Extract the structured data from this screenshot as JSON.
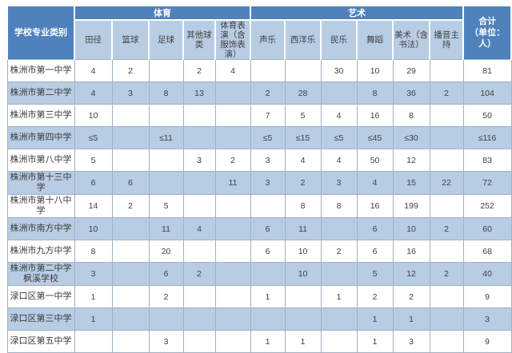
{
  "table": {
    "corner_header": "学校专业类别",
    "group_sport": "体育",
    "group_art": "艺术",
    "total_header_line1": "合计",
    "total_header_line2": "（单位：人）",
    "columns": [
      "田径",
      "篮球",
      "足球",
      "其他球类",
      "体育表演（含服饰表演）",
      "声乐",
      "西洋乐",
      "民乐",
      "舞蹈",
      "美术（含书法）",
      "播音主持"
    ],
    "rows": [
      {
        "school": "株洲市第一中学",
        "values": [
          "4",
          "2",
          "",
          "2",
          "4",
          "",
          "",
          "30",
          "10",
          "29",
          ""
        ],
        "total": "81"
      },
      {
        "school": "株洲市第二中学",
        "values": [
          "4",
          "3",
          "8",
          "13",
          "",
          "2",
          "28",
          "",
          "8",
          "36",
          "2"
        ],
        "total": "104"
      },
      {
        "school": "株洲市第三中学",
        "values": [
          "10",
          "",
          "",
          "",
          "",
          "7",
          "5",
          "4",
          "16",
          "8",
          ""
        ],
        "total": "50"
      },
      {
        "school": "株洲市第四中学",
        "values": [
          "≤5",
          "",
          "≤11",
          "",
          "",
          "≤5",
          "≤15",
          "≤5",
          "≤45",
          "≤30",
          ""
        ],
        "total": "≤116"
      },
      {
        "school": "株洲市第八中学",
        "values": [
          "5",
          "",
          "",
          "3",
          "2",
          "3",
          "4",
          "4",
          "50",
          "12",
          ""
        ],
        "total": "83"
      },
      {
        "school": "株洲市第十三中学",
        "values": [
          "6",
          "6",
          "",
          "",
          "11",
          "3",
          "2",
          "3",
          "4",
          "15",
          "22"
        ],
        "total": "72"
      },
      {
        "school": "株洲市第十八中学",
        "values": [
          "14",
          "2",
          "5",
          "",
          "",
          "",
          "8",
          "8",
          "16",
          "199",
          ""
        ],
        "total": "252"
      },
      {
        "school": "株洲市南方中学",
        "values": [
          "10",
          "",
          "11",
          "4",
          "",
          "6",
          "11",
          "",
          "6",
          "10",
          "2"
        ],
        "total": "60"
      },
      {
        "school": "株洲市九方中学",
        "values": [
          "8",
          "",
          "20",
          "",
          "",
          "6",
          "10",
          "2",
          "6",
          "16",
          ""
        ],
        "total": "68"
      },
      {
        "school": "株洲市第二中学枫溪学校",
        "values": [
          "3",
          "",
          "6",
          "2",
          "",
          "",
          "10",
          "",
          "5",
          "12",
          "2"
        ],
        "total": "40"
      },
      {
        "school": "渌口区第一中学",
        "values": [
          "1",
          "",
          "2",
          "",
          "",
          "1",
          "",
          "1",
          "2",
          "2",
          ""
        ],
        "total": "9"
      },
      {
        "school": "渌口区第三中学",
        "values": [
          "1",
          "",
          "",
          "",
          "",
          "",
          "",
          "",
          "1",
          "1",
          ""
        ],
        "total": "3"
      },
      {
        "school": "渌口区第五中学",
        "values": [
          "",
          "",
          "3",
          "",
          "",
          "1",
          "1",
          "",
          "1",
          "3",
          ""
        ],
        "total": "9"
      }
    ]
  },
  "colors": {
    "header_blue": "#4f81bd",
    "band_light_blue": "#b8cce4",
    "grid_border": "#9fb2c6",
    "header_text": "#ffffff",
    "body_text": "#3f3f3f"
  }
}
